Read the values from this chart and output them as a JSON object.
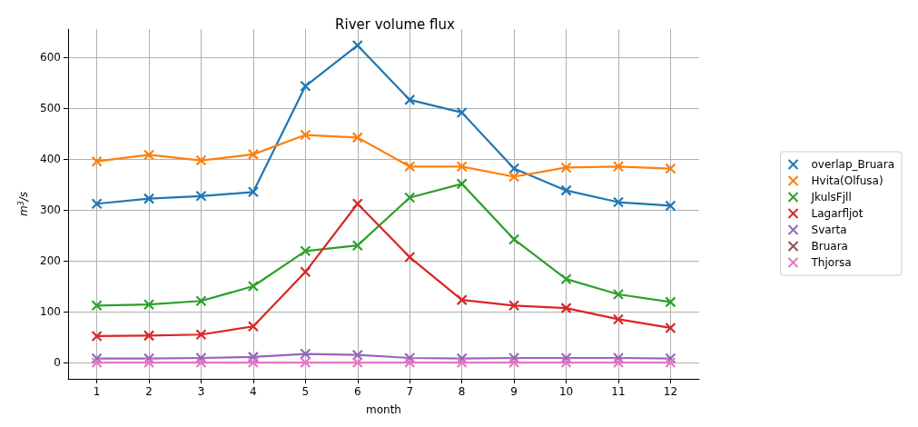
{
  "chart_data": {
    "type": "line",
    "title": "River volume flux",
    "xlabel": "month",
    "ylabel": "m$^{3}$/s",
    "x": [
      1,
      2,
      3,
      4,
      5,
      6,
      7,
      8,
      9,
      10,
      11,
      12
    ],
    "xlim": [
      0.45,
      12.55
    ],
    "xticks": [
      1,
      2,
      3,
      4,
      5,
      6,
      7,
      8,
      9,
      10,
      11,
      12
    ],
    "ylim": [
      -32,
      655
    ],
    "yticks": [
      0,
      100,
      200,
      300,
      400,
      500,
      600
    ],
    "grid": true,
    "legend": "right",
    "marker": "cross",
    "line_style": "solid",
    "series": [
      {
        "name": "overlap_Bruara",
        "color": "#1f77b4",
        "values": [
          312,
          322,
          327,
          335,
          543,
          623,
          516,
          491,
          381,
          338,
          315,
          308
        ]
      },
      {
        "name": "Hvita(Olfusa)",
        "color": "#ff7f0e",
        "values": [
          395,
          408,
          397,
          409,
          447,
          442,
          385,
          385,
          365,
          383,
          385,
          381
        ]
      },
      {
        "name": "JkulsFjll",
        "color": "#2ca02c",
        "values": [
          112,
          114,
          121,
          150,
          219,
          230,
          324,
          351,
          242,
          164,
          134,
          119
        ]
      },
      {
        "name": "Lagarfljot",
        "color": "#d62728",
        "values": [
          52,
          53,
          55,
          71,
          178,
          312,
          207,
          123,
          112,
          107,
          85,
          68
        ]
      },
      {
        "name": "Svarta",
        "color": "#9467bd",
        "values": [
          8,
          8,
          9,
          11,
          17,
          15,
          9,
          8,
          9,
          9,
          9,
          8
        ]
      },
      {
        "name": "Bruara",
        "color": "#8c564b",
        "values": [
          null,
          null,
          null,
          null,
          null,
          null,
          null,
          null,
          null,
          null,
          null,
          null
        ]
      },
      {
        "name": "Thjorsa",
        "color": "#e377c2",
        "values": [
          0,
          0,
          0,
          0,
          0,
          0,
          0,
          0,
          0,
          0,
          0,
          0
        ]
      }
    ]
  }
}
